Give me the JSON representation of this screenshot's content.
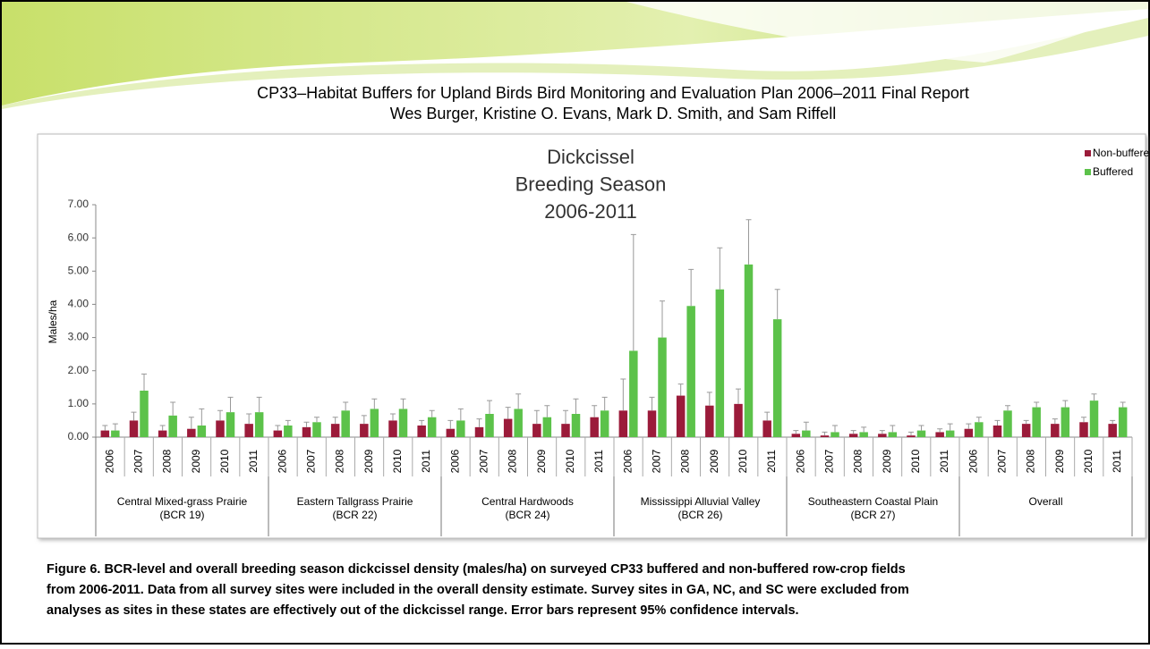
{
  "header": {
    "title": "CP33–Habitat Buffers for Upland Birds Bird Monitoring and Evaluation Plan 2006–2011 Final Report",
    "authors": "Wes Burger, Kristine O. Evans, Mark D. Smith, and Sam Riffell"
  },
  "chart_data": {
    "type": "bar",
    "title": [
      "Dickcissel",
      "Breeding Season",
      "2006-2011"
    ],
    "y_label": "Males/ha",
    "categories": [
      "2006",
      "2007",
      "2008",
      "2009",
      "2010",
      "2011",
      "2006",
      "2007",
      "2008",
      "2009",
      "2010",
      "2011",
      "2006",
      "2007",
      "2008",
      "2009",
      "2010",
      "2011",
      "2006",
      "2007",
      "2008",
      "2009",
      "2010",
      "2011",
      "2006",
      "2007",
      "2008",
      "2009",
      "2010",
      "2011",
      "2006",
      "2007",
      "2008",
      "2009",
      "2010",
      "2011"
    ],
    "groups": [
      {
        "name": "Central Mixed-grass Prairie",
        "code": "(BCR 19)"
      },
      {
        "name": "Eastern Tallgrass Prairie",
        "code": "(BCR 22)"
      },
      {
        "name": "Central Hardwoods",
        "code": "(BCR 24)"
      },
      {
        "name": "Mississippi Alluvial Valley",
        "code": "(BCR 26)"
      },
      {
        "name": "Southeastern Coastal Plain",
        "code": "(BCR 27)"
      },
      {
        "name": "Overall",
        "code": null
      }
    ],
    "series": [
      {
        "name": "Non-buffered",
        "color": "#9b1b3a",
        "values": [
          0.2,
          0.5,
          0.2,
          0.25,
          0.5,
          0.4,
          0.2,
          0.3,
          0.4,
          0.4,
          0.5,
          0.35,
          0.25,
          0.3,
          0.55,
          0.4,
          0.4,
          0.6,
          0.8,
          0.8,
          1.25,
          0.95,
          1.0,
          0.5,
          0.1,
          0.05,
          0.1,
          0.1,
          0.05,
          0.15,
          0.25,
          0.35,
          0.4,
          0.4,
          0.45,
          0.4
        ],
        "errors": [
          0.15,
          0.25,
          0.15,
          0.35,
          0.3,
          0.3,
          0.15,
          0.15,
          0.2,
          0.25,
          0.2,
          0.15,
          0.25,
          0.25,
          0.35,
          0.4,
          0.4,
          0.35,
          0.95,
          0.4,
          0.35,
          0.4,
          0.45,
          0.25,
          0.1,
          0.1,
          0.1,
          0.1,
          0.1,
          0.1,
          0.15,
          0.15,
          0.1,
          0.15,
          0.15,
          0.1
        ]
      },
      {
        "name": "Buffered",
        "color": "#5cc24a",
        "values": [
          0.2,
          1.4,
          0.65,
          0.35,
          0.75,
          0.75,
          0.35,
          0.45,
          0.8,
          0.85,
          0.85,
          0.6,
          0.5,
          0.7,
          0.85,
          0.6,
          0.7,
          0.8,
          2.6,
          3.0,
          3.95,
          4.45,
          5.2,
          3.55,
          0.2,
          0.15,
          0.15,
          0.15,
          0.2,
          0.2,
          0.45,
          0.8,
          0.9,
          0.9,
          1.1,
          0.9
        ],
        "errors": [
          0.2,
          0.5,
          0.4,
          0.5,
          0.45,
          0.45,
          0.15,
          0.15,
          0.25,
          0.3,
          0.3,
          0.2,
          0.35,
          0.4,
          0.45,
          0.35,
          0.45,
          0.4,
          3.5,
          1.1,
          1.1,
          1.25,
          1.35,
          0.9,
          0.25,
          0.2,
          0.15,
          0.2,
          0.15,
          0.2,
          0.15,
          0.15,
          0.15,
          0.2,
          0.2,
          0.15
        ]
      }
    ],
    "ylim": [
      0,
      7
    ],
    "yticks": [
      {
        "value": 0,
        "label": "0.00"
      },
      {
        "value": 1,
        "label": "1.00"
      },
      {
        "value": 2,
        "label": "2.00"
      },
      {
        "value": 3,
        "label": "3.00"
      },
      {
        "value": 4,
        "label": "4.00"
      },
      {
        "value": 5,
        "label": "5.00"
      },
      {
        "value": 6,
        "label": "6.00"
      },
      {
        "value": 7,
        "label": "7.00"
      }
    ],
    "legend": "top-right"
  },
  "caption": [
    "Figure 6. BCR-level and overall breeding season dickcissel density (males/ha) on surveyed CP33 buffered and non-buffered row-crop fields",
    "from 2006-2011. Data from all survey sites were included in the overall density estimate. Survey sites in GA, NC, and SC were excluded from",
    "analyses as sites in these states are effectively out of the dickcissel range. Error bars represent 95% confidence intervals."
  ]
}
